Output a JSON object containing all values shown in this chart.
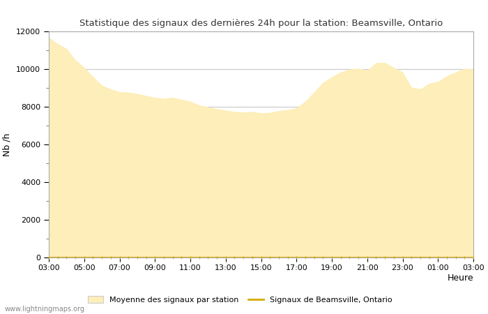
{
  "title": "Statistique des signaux des dernières 24h pour la station: Beamsville, Ontario",
  "xlabel": "Heure",
  "ylabel": "Nb /h",
  "xlim": [
    0,
    24
  ],
  "ylim": [
    0,
    12000
  ],
  "yticks": [
    0,
    2000,
    4000,
    6000,
    8000,
    10000,
    12000
  ],
  "xtick_labels": [
    "03:00",
    "05:00",
    "07:00",
    "09:00",
    "11:00",
    "13:00",
    "15:00",
    "17:00",
    "19:00",
    "21:00",
    "23:00",
    "01:00",
    "03:00"
  ],
  "fill_color": "#fdeeba",
  "line_color": "#d4aa00",
  "background_color": "#ffffff",
  "grid_color": "#c8c8c8",
  "watermark": "www.lightningmaps.org",
  "legend_fill_label": "Moyenne des signaux par station",
  "legend_line_label": "Signaux de Beamsville, Ontario",
  "x": [
    0,
    0.5,
    1,
    1.5,
    2,
    2.5,
    3,
    3.5,
    4,
    4.5,
    5,
    5.5,
    6,
    6.5,
    7,
    7.5,
    8,
    8.5,
    9,
    9.5,
    10,
    10.5,
    11,
    11.5,
    12,
    12.5,
    13,
    13.5,
    14,
    14.5,
    15,
    15.5,
    16,
    16.5,
    17,
    17.5,
    18,
    18.5,
    19,
    19.5,
    20,
    20.5,
    21,
    21.5,
    22,
    22.5,
    23,
    23.5,
    24
  ],
  "y_fill": [
    11700,
    11350,
    11100,
    10500,
    10100,
    9600,
    9150,
    8950,
    8800,
    8780,
    8700,
    8600,
    8500,
    8450,
    8500,
    8400,
    8300,
    8100,
    8000,
    7900,
    7820,
    7750,
    7720,
    7750,
    7680,
    7700,
    7800,
    7850,
    7950,
    8300,
    8800,
    9300,
    9600,
    9850,
    10000,
    10050,
    9950,
    10350,
    10350,
    10100,
    9850,
    9050,
    8950,
    9250,
    9350,
    9650,
    9850,
    10050,
    10000
  ],
  "y_line": [
    0,
    0,
    0,
    0,
    0,
    0,
    0,
    0,
    0,
    0,
    0,
    0,
    0,
    0,
    0,
    0,
    0,
    0,
    0,
    0,
    0,
    0,
    0,
    0,
    0,
    0,
    0,
    0,
    0,
    0,
    0,
    0,
    0,
    0,
    0,
    0,
    0,
    0,
    0,
    0,
    0,
    0,
    0,
    0,
    0,
    0,
    0,
    0,
    0
  ]
}
